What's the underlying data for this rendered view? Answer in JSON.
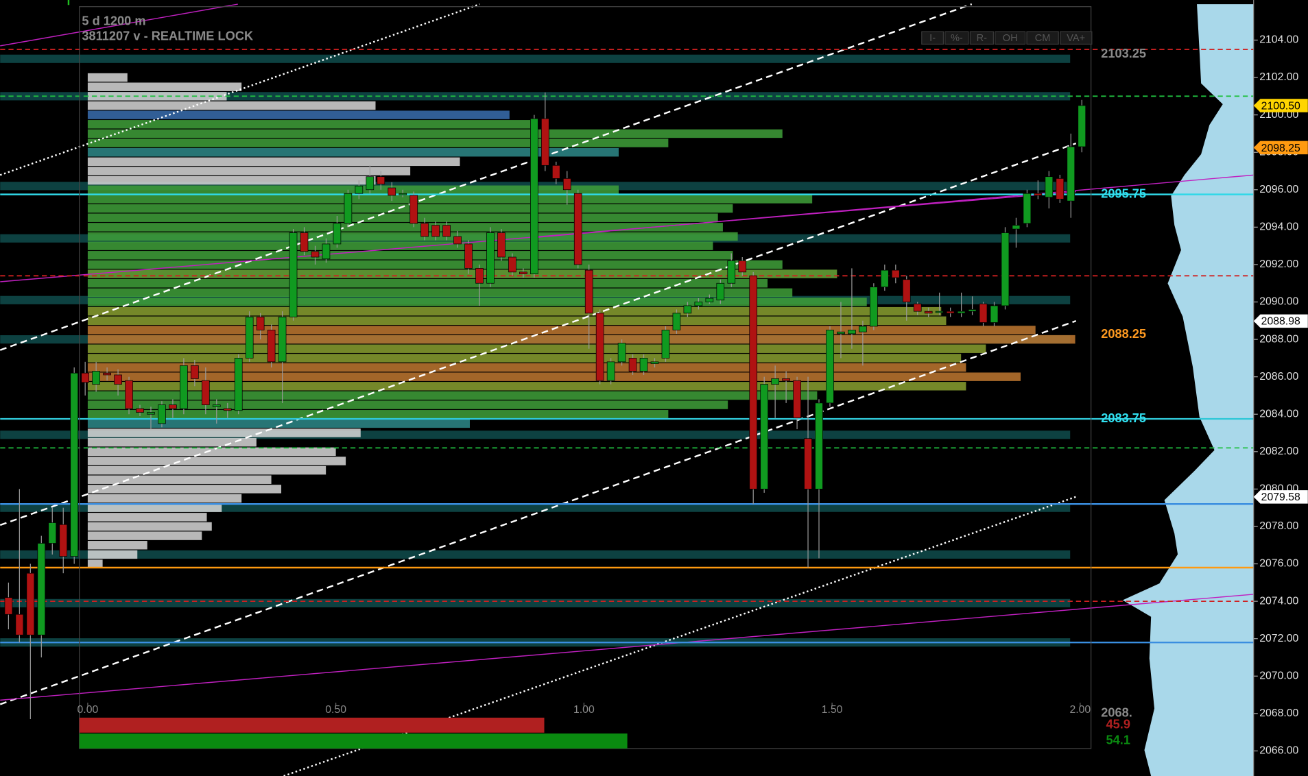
{
  "header": {
    "line1": "5 d 1200 m",
    "line2": "3811207 v - REALTIME LOCK",
    "buttons": [
      "I-",
      "%-",
      "R-",
      "OH",
      "CM",
      "VA+"
    ]
  },
  "chart_data": {
    "type": "candlestick",
    "ylim": [
      2064.66,
      2105.92
    ],
    "yticks": [
      {
        "value": 2066,
        "label": "2066.00"
      },
      {
        "value": 2068,
        "label": "2068.00"
      },
      {
        "value": 2070,
        "label": "2070.00"
      },
      {
        "value": 2072,
        "label": "2072.00"
      },
      {
        "value": 2074,
        "label": "2074.00"
      },
      {
        "value": 2076,
        "label": "2076.00"
      },
      {
        "value": 2078,
        "label": "2078.00"
      },
      {
        "value": 2080,
        "label": "2080.00"
      },
      {
        "value": 2082,
        "label": "2082.00"
      },
      {
        "value": 2084,
        "label": "2084.00"
      },
      {
        "value": 2086,
        "label": "2086.00"
      },
      {
        "value": 2088,
        "label": "2088.00"
      },
      {
        "value": 2090,
        "label": "2090.00"
      },
      {
        "value": 2092,
        "label": "2092.00"
      },
      {
        "value": 2094,
        "label": "2094.00"
      },
      {
        "value": 2096,
        "label": "2096.00"
      },
      {
        "value": 2098,
        "label": "2098.00"
      },
      {
        "value": 2100,
        "label": "2100.00"
      },
      {
        "value": 2102,
        "label": "2102.00"
      },
      {
        "value": 2104,
        "label": "2104.00"
      }
    ],
    "xlim": [
      0,
      2
    ],
    "xticks": [
      {
        "value": 0,
        "label": "0.00"
      },
      {
        "value": 0.5,
        "label": "0.50"
      },
      {
        "value": 1,
        "label": "1.00"
      },
      {
        "value": 1.5,
        "label": "1.50"
      },
      {
        "value": 2,
        "label": "2.00"
      }
    ],
    "up_color": "#109a20",
    "down_color": "#b01212",
    "open": [
      2074.2,
      2073.3,
      2075.5,
      2072.2,
      2077.1,
      2078.1,
      2076.4,
      2086.2,
      2085.6,
      2086.2,
      2086.1,
      2085.8,
      2084.3,
      2084.0,
      2083.5,
      2084.5,
      2084.3,
      2086.6,
      2085.8,
      2084.4,
      2084.3,
      2084.2,
      2087.0,
      2089.2,
      2088.5,
      2086.8,
      2089.2,
      2093.7,
      2092.7,
      2092.3,
      2093.1,
      2094.2,
      2095.8,
      2096.0,
      2096.7,
      2096.1,
      2095.8,
      2095.7,
      2094.2,
      2094.1,
      2094.1,
      2093.5,
      2093.1,
      2091.8,
      2091.0,
      2093.7,
      2092.4,
      2091.6,
      2091.5,
      2099.8,
      2097.3,
      2096.6,
      2095.8,
      2091.7,
      2089.4,
      2085.8,
      2086.8,
      2087.0,
      2086.3,
      2086.7,
      2087.0,
      2088.5,
      2089.4,
      2089.8,
      2090.0,
      2090.1,
      2091.0,
      2092.2,
      2091.4,
      2080.0,
      2085.6,
      2085.9,
      2085.8,
      2082.7,
      2080.0,
      2084.6,
      2088.3,
      2088.3,
      2088.4,
      2088.7,
      2090.8,
      2091.7,
      2091.2,
      2089.9,
      2089.5,
      2089.5,
      2089.5,
      2089.4,
      2089.5,
      2089.9,
      2088.9,
      2089.8,
      2093.9,
      2094.2,
      2095.8,
      2095.6,
      2096.6,
      2095.4,
      2098.3
    ],
    "high": [
      2075.0,
      2080.0,
      2076.0,
      2077.5,
      2079.0,
      2079.0,
      2086.5,
      2086.8,
      2086.8,
      2086.5,
      2086.4,
      2086.0,
      2084.5,
      2084.4,
      2084.7,
      2084.8,
      2087.0,
      2086.9,
      2086.5,
      2084.8,
      2084.6,
      2087.2,
      2089.5,
      2089.4,
      2088.8,
      2089.5,
      2093.9,
      2094.0,
      2093.0,
      2093.4,
      2094.6,
      2096.0,
      2096.5,
      2097.3,
      2097.0,
      2096.4,
      2096.0,
      2095.9,
      2094.5,
      2094.3,
      2094.3,
      2093.8,
      2093.3,
      2092.0,
      2094.0,
      2093.9,
      2092.6,
      2091.8,
      2100.0,
      2101.2,
      2097.5,
      2097.0,
      2096.0,
      2092.0,
      2089.6,
      2087.0,
      2088.0,
      2087.2,
      2087.2,
      2087.0,
      2088.7,
      2089.6,
      2090.0,
      2090.2,
      2090.4,
      2091.2,
      2092.6,
      2092.4,
      2091.6,
      2086.0,
      2086.6,
      2086.3,
      2086.0,
      2086.0,
      2084.8,
      2088.7,
      2090.0,
      2091.8,
      2089.0,
      2091.0,
      2092.0,
      2092.0,
      2091.4,
      2090.0,
      2089.7,
      2090.5,
      2089.7,
      2090.5,
      2090.3,
      2090.0,
      2090.0,
      2094.0,
      2094.5,
      2096.0,
      2096.5,
      2097.0,
      2096.8,
      2099.0,
      2100.8
    ],
    "low": [
      2072.5,
      2071.8,
      2067.7,
      2071.0,
      2076.5,
      2075.5,
      2076.0,
      2085.0,
      2085.2,
      2085.8,
      2085.0,
      2084.0,
      2083.9,
      2083.2,
      2083.3,
      2083.8,
      2084.0,
      2085.5,
      2084.0,
      2083.5,
      2083.8,
      2084.0,
      2086.8,
      2088.0,
      2086.5,
      2084.6,
      2089.0,
      2092.5,
      2092.0,
      2092.1,
      2092.9,
      2094.0,
      2095.5,
      2095.8,
      2096.0,
      2095.4,
      2095.6,
      2094.0,
      2093.3,
      2093.3,
      2093.3,
      2092.9,
      2091.5,
      2089.8,
      2090.8,
      2092.2,
      2091.4,
      2091.3,
      2091.3,
      2097.0,
      2096.3,
      2095.2,
      2091.8,
      2087.5,
      2085.6,
      2085.6,
      2086.6,
      2086.1,
      2086.1,
      2086.5,
      2086.8,
      2088.3,
      2089.2,
      2089.6,
      2089.9,
      2089.9,
      2090.8,
      2091.4,
      2079.2,
      2079.8,
      2083.8,
      2084.6,
      2083.2,
      2075.8,
      2076.3,
      2084.4,
      2087.0,
      2087.5,
      2086.6,
      2088.5,
      2090.6,
      2091.0,
      2089.0,
      2089.3,
      2089.2,
      2089.3,
      2089.2,
      2089.2,
      2089.3,
      2088.7,
      2088.7,
      2089.6,
      2092.9,
      2094.0,
      2095.5,
      2095.0,
      2095.3,
      2094.5,
      2098.0
    ],
    "close": [
      2073.3,
      2072.2,
      2072.2,
      2077.1,
      2078.2,
      2076.4,
      2086.2,
      2085.7,
      2086.3,
      2086.1,
      2085.6,
      2084.3,
      2084.1,
      2084.1,
      2084.5,
      2084.3,
      2086.6,
      2085.9,
      2084.5,
      2084.5,
      2084.2,
      2087.0,
      2089.2,
      2088.5,
      2086.8,
      2089.2,
      2093.7,
      2092.7,
      2092.4,
      2093.1,
      2094.2,
      2095.8,
      2096.2,
      2096.7,
      2096.3,
      2095.7,
      2095.8,
      2094.2,
      2093.5,
      2093.5,
      2093.5,
      2093.1,
      2091.8,
      2091.0,
      2093.7,
      2092.4,
      2091.6,
      2091.5,
      2099.8,
      2097.3,
      2096.6,
      2096.0,
      2092.0,
      2089.4,
      2085.8,
      2086.8,
      2087.8,
      2086.3,
      2087.0,
      2086.8,
      2088.5,
      2089.4,
      2089.8,
      2090.0,
      2090.2,
      2091.0,
      2092.2,
      2091.6,
      2080.0,
      2085.6,
      2085.9,
      2085.8,
      2083.8,
      2080.0,
      2084.6,
      2088.5,
      2088.4,
      2088.5,
      2088.7,
      2090.8,
      2091.7,
      2091.3,
      2090.0,
      2089.5,
      2089.4,
      2089.5,
      2089.4,
      2089.5,
      2089.6,
      2088.9,
      2089.8,
      2093.7,
      2094.1,
      2095.8,
      2095.7,
      2096.7,
      2095.5,
      2098.3,
      2100.5
    ],
    "profile": {
      "prices": [
        2102,
        2101.5,
        2101,
        2100.5,
        2100,
        2099.5,
        2099,
        2098.5,
        2098,
        2097.5,
        2097,
        2096.5,
        2096,
        2095.5,
        2095,
        2094.5,
        2094,
        2093.5,
        2093,
        2092.5,
        2092,
        2091.5,
        2091,
        2090.5,
        2090,
        2089.5,
        2089,
        2088.5,
        2088,
        2087.5,
        2087,
        2086.5,
        2086,
        2085.5,
        2085,
        2084.5,
        2084,
        2083.5,
        2083,
        2082.5,
        2082,
        2081.5,
        2081,
        2080.5,
        2080,
        2079.5,
        2079,
        2078.5,
        2078,
        2077.5,
        2077,
        2076.5,
        2076
      ],
      "values": [
        0.08,
        0.31,
        0.28,
        0.58,
        0.85,
        0.9,
        1.4,
        1.17,
        1.07,
        0.75,
        0.65,
        0.58,
        1.07,
        1.46,
        1.3,
        1.27,
        1.28,
        1.31,
        1.26,
        1.3,
        1.4,
        1.51,
        1.37,
        1.42,
        1.57,
        1.72,
        1.73,
        1.91,
        1.99,
        1.81,
        1.76,
        1.77,
        1.88,
        1.77,
        1.47,
        1.29,
        1.17,
        0.77,
        0.55,
        0.34,
        0.5,
        0.52,
        0.48,
        0.37,
        0.39,
        0.31,
        0.27,
        0.24,
        0.25,
        0.23,
        0.12,
        0.1,
        0.03
      ],
      "colors": [
        "#d8d8d8",
        "#d8d8d8",
        "#d8d8d8",
        "#d8d8d8",
        "#3a6fb0",
        "#3fa03a",
        "#3fa03a",
        "#3fa03a",
        "#2e8a8a",
        "#d8d8d8",
        "#d8d8d8",
        "#d8d8d8",
        "#3fa03a",
        "#3fa03a",
        "#3fa03a",
        "#3fa03a",
        "#3fa03a",
        "#3fa03a",
        "#3fa03a",
        "#3fa03a",
        "#3fa03a",
        "#6aa838",
        "#3fa03a",
        "#3fa03a",
        "#3fa03a",
        "#8aa030",
        "#8aa030",
        "#c07830",
        "#c07830",
        "#8aa030",
        "#8aa030",
        "#c07830",
        "#c07830",
        "#8aa030",
        "#3fa03a",
        "#3fa03a",
        "#3fa03a",
        "#2e8a8a",
        "#d8d8d8",
        "#d8d8d8",
        "#d8d8d8",
        "#d8d8d8",
        "#d8d8d8",
        "#d8d8d8",
        "#d8d8d8",
        "#d8d8d8",
        "#d8d8d8",
        "#d8d8d8",
        "#d8d8d8",
        "#d8d8d8",
        "#d8d8d8",
        "#d8d8d8",
        "#d8d8d8"
      ]
    },
    "bands": [
      2103,
      2101,
      2096.2,
      2093.4,
      2090.1,
      2088,
      2082.9,
      2079,
      2076.5,
      2073.9,
      2071.8
    ],
    "lines": [
      {
        "value": 2103.5,
        "color": "#d02020",
        "style": "dash"
      },
      {
        "value": 2101,
        "color": "#20c040",
        "style": "dash"
      },
      {
        "value": 2095.75,
        "color": "#30d8e8",
        "style": "solid"
      },
      {
        "value": 2091.4,
        "color": "#d02020",
        "style": "dash"
      },
      {
        "value": 2083.75,
        "color": "#30c8d8",
        "style": "solid"
      },
      {
        "value": 2082.2,
        "color": "#20c040",
        "style": "dash"
      },
      {
        "value": 2079.2,
        "color": "#3a8ee0",
        "style": "solid"
      },
      {
        "value": 2075.8,
        "color": "#ff9a10",
        "style": "solid"
      },
      {
        "value": 2074,
        "color": "#d02020",
        "style": "dash"
      },
      {
        "value": 2071.8,
        "color": "#3a8ee0",
        "style": "solid"
      }
    ],
    "level_labels": [
      {
        "value": 2103.25,
        "color": "#8a8a8a"
      },
      {
        "value": 2095.75,
        "color": "#30e0f0"
      },
      {
        "value": 2088.25,
        "color": "#ff9a20"
      },
      {
        "value": 2083.75,
        "color": "#30e0f0"
      },
      {
        "value": 2068,
        "label": "2068.",
        "color": "#8a8a8a"
      }
    ],
    "price_tags": [
      {
        "value": 2100.5,
        "label": "2100.50",
        "color": "#ffd500"
      },
      {
        "value": 2098.25,
        "color": "#ff9a10"
      },
      {
        "value": 2088.98,
        "color": "#ffffff"
      },
      {
        "value": 2079.58,
        "color": "#ffffff"
      }
    ],
    "split": {
      "values": [
        45.9,
        54.1
      ],
      "colors": [
        "#b02020",
        "#0a8a10"
      ]
    }
  }
}
